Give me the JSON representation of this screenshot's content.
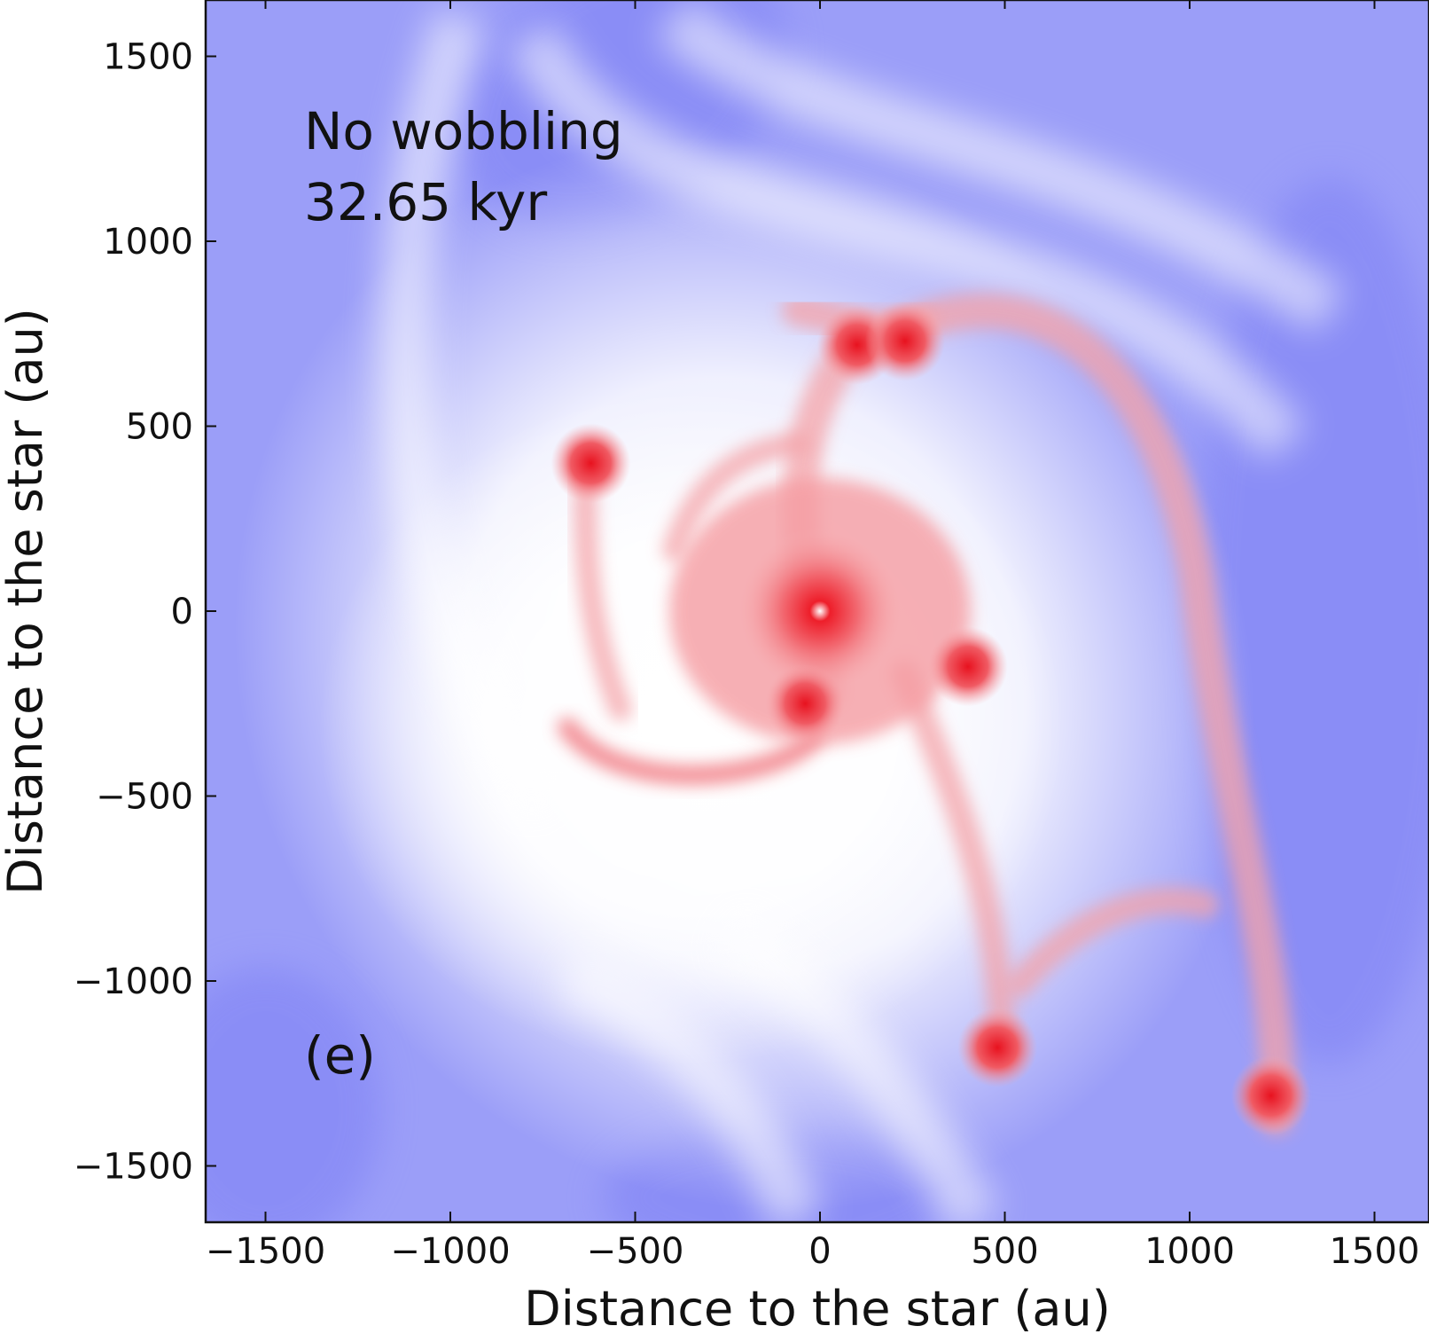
{
  "figure": {
    "annotation_line1": "No wobbling",
    "annotation_line2": "32.65 kyr",
    "panel_label": "(e)",
    "xlabel": "Distance to the star (au)",
    "ylabel": "Distance to the star (au)"
  },
  "chart_data": {
    "type": "heatmap",
    "title": "",
    "xlabel": "Distance to the star (au)",
    "ylabel": "Distance to the star (au)",
    "xlim": [
      -1660,
      1660
    ],
    "ylim": [
      -1660,
      1660
    ],
    "x_ticks": [
      -1500,
      -1000,
      -500,
      0,
      500,
      1000,
      1500
    ],
    "y_ticks": [
      -1500,
      -1000,
      -500,
      0,
      500,
      1000,
      1500
    ],
    "colormap": "bwr",
    "colors": {
      "low": "#8a8df7",
      "mid": "#ffffff",
      "high": "#e8101f"
    },
    "grid": false,
    "annotations": [
      "No wobbling",
      "32.65 kyr",
      "(e)"
    ],
    "features": {
      "central_star": [
        0,
        0
      ],
      "dense_clumps": [
        [
          -40,
          -250
        ],
        [
          400,
          -150
        ],
        [
          100,
          720
        ],
        [
          230,
          730
        ],
        [
          -620,
          400
        ],
        [
          480,
          -1180
        ],
        [
          1220,
          -1310
        ]
      ]
    }
  }
}
